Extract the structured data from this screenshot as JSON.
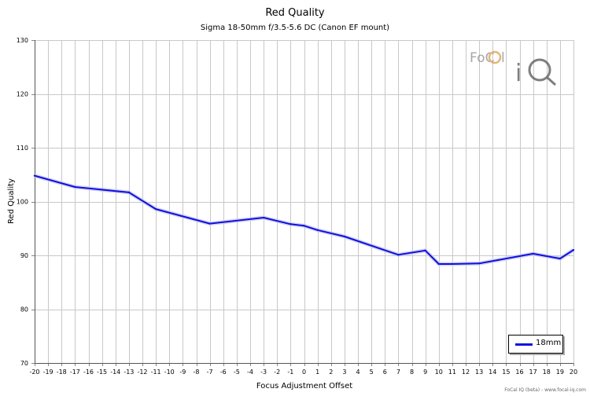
{
  "chart_data": {
    "type": "line",
    "title": "Red Quality",
    "subtitle": "Sigma 18-50mm f/3.5-5.6 DC (Canon EF mount)",
    "xlabel": "Focus Adjustment Offset",
    "ylabel": "Red Quality",
    "xlim": [
      -20,
      20
    ],
    "ylim": [
      70,
      130
    ],
    "x_ticks": [
      -20,
      -19,
      -18,
      -17,
      -16,
      -15,
      -14,
      -13,
      -12,
      -11,
      -10,
      -9,
      -8,
      -7,
      -6,
      -5,
      -4,
      -3,
      -2,
      -1,
      0,
      1,
      2,
      3,
      4,
      5,
      6,
      7,
      8,
      9,
      10,
      11,
      12,
      13,
      14,
      15,
      16,
      17,
      18,
      19,
      20
    ],
    "y_ticks": [
      70,
      80,
      90,
      100,
      110,
      120,
      130
    ],
    "grid": true,
    "legend_position": "bottom-right",
    "series": [
      {
        "name": "18mm",
        "color": "#1010e0",
        "x": [
          -20,
          -17,
          -13,
          -11,
          -7,
          -3,
          -1,
          0,
          1,
          3,
          7,
          9,
          10,
          11,
          13,
          17,
          19,
          20
        ],
        "values": [
          104.8,
          102.7,
          101.7,
          98.6,
          95.9,
          97.0,
          95.8,
          95.5,
          94.7,
          93.5,
          90.1,
          90.9,
          88.4,
          88.4,
          88.5,
          90.3,
          89.4,
          91.0
        ]
      }
    ]
  },
  "watermark": {
    "logo_text": "FoCal iQ",
    "credit": "FoCal IQ (beta) - www.focal-iq.com",
    "colors": {
      "focal": "#8a8a8a",
      "accent": "#d9a050",
      "iq": "#555555"
    }
  }
}
